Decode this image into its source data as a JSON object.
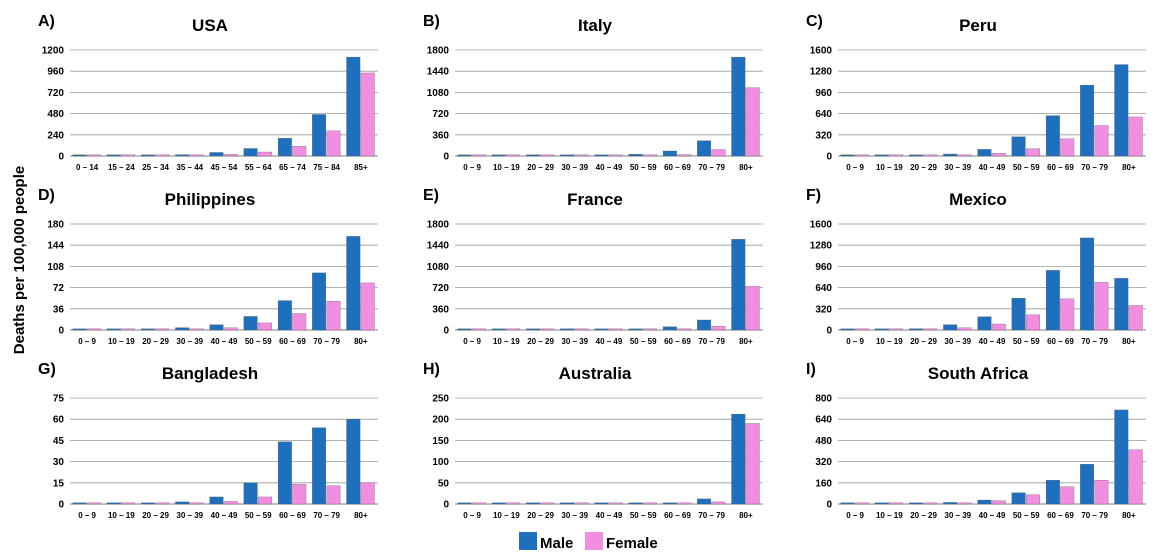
{
  "ylabel": "Deaths per 100,000 people",
  "legend": [
    {
      "label": "Male",
      "color": "#1f6fbf"
    },
    {
      "label": "Female",
      "color": "#f28ee0"
    }
  ],
  "colors": {
    "male": "#1f6fbf",
    "female": "#f28ee0",
    "grid": "#9a9a9a"
  },
  "chart_data": [
    {
      "type": "bar",
      "letter": "A)",
      "title": "USA",
      "categories": [
        "0 – 14",
        "15 – 24",
        "25 – 34",
        "35 – 44",
        "45 – 54",
        "55 – 64",
        "65 – 74",
        "75 – 84",
        "85+"
      ],
      "yticks": [
        "0",
        "240",
        "480",
        "720",
        "960",
        "1200"
      ],
      "ylim": [
        0,
        1200
      ],
      "series": [
        {
          "name": "Male",
          "values": [
            3,
            5,
            8,
            15,
            40,
            85,
            200,
            470,
            1120
          ]
        },
        {
          "name": "Female",
          "values": [
            2,
            3,
            4,
            8,
            18,
            45,
            110,
            285,
            940
          ]
        }
      ]
    },
    {
      "type": "bar",
      "letter": "B)",
      "title": "Italy",
      "categories": [
        "0 – 9",
        "10 – 19",
        "20 – 29",
        "30 – 39",
        "40 – 49",
        "50 – 59",
        "60 – 69",
        "70 – 79",
        "80+"
      ],
      "yticks": [
        "0",
        "360",
        "720",
        "1080",
        "1440",
        "1800"
      ],
      "ylim": [
        0,
        1800
      ],
      "series": [
        {
          "name": "Male",
          "values": [
            2,
            1,
            3,
            5,
            12,
            30,
            85,
            260,
            1680
          ]
        },
        {
          "name": "Female",
          "values": [
            1,
            1,
            2,
            3,
            5,
            10,
            25,
            110,
            1160
          ]
        }
      ]
    },
    {
      "type": "bar",
      "letter": "C)",
      "title": "Peru",
      "categories": [
        "0 – 9",
        "10 – 19",
        "20 – 29",
        "30 – 39",
        "40 – 49",
        "50 – 59",
        "60 – 69",
        "70 – 79",
        "80+"
      ],
      "yticks": [
        "0",
        "320",
        "640",
        "960",
        "1280",
        "1600"
      ],
      "ylim": [
        0,
        1600
      ],
      "series": [
        {
          "name": "Male",
          "values": [
            5,
            5,
            10,
            30,
            100,
            290,
            610,
            1070,
            1380
          ]
        },
        {
          "name": "Female",
          "values": [
            3,
            3,
            5,
            12,
            40,
            110,
            260,
            460,
            590
          ]
        }
      ]
    },
    {
      "type": "bar",
      "letter": "D)",
      "title": "Philippines",
      "categories": [
        "0 – 9",
        "10 – 19",
        "20 – 29",
        "30 – 39",
        "40 – 49",
        "50 – 59",
        "60 – 69",
        "70 – 79",
        "80+"
      ],
      "yticks": [
        "0",
        "36",
        "72",
        "108",
        "144",
        "180"
      ],
      "ylim": [
        0,
        180
      ],
      "series": [
        {
          "name": "Male",
          "values": [
            1,
            1,
            1,
            4,
            9,
            23,
            50,
            97,
            159
          ]
        },
        {
          "name": "Female",
          "values": [
            1,
            1,
            1,
            2,
            4,
            12,
            28,
            49,
            80
          ]
        }
      ]
    },
    {
      "type": "bar",
      "letter": "E)",
      "title": "France",
      "categories": [
        "0 – 9",
        "10 – 19",
        "20 – 29",
        "30 – 39",
        "40 – 49",
        "50 – 59",
        "60 – 69",
        "70 – 79",
        "80+"
      ],
      "yticks": [
        "0",
        "360",
        "720",
        "1080",
        "1440",
        "1800"
      ],
      "ylim": [
        0,
        1800
      ],
      "series": [
        {
          "name": "Male",
          "values": [
            1,
            1,
            2,
            4,
            8,
            20,
            55,
            170,
            1540
          ]
        },
        {
          "name": "Female",
          "values": [
            1,
            1,
            1,
            2,
            4,
            10,
            22,
            65,
            740
          ]
        }
      ]
    },
    {
      "type": "bar",
      "letter": "F)",
      "title": "Mexico",
      "categories": [
        "0 – 9",
        "10 – 19",
        "20 – 29",
        "30 – 39",
        "40 – 49",
        "50 – 59",
        "60 – 69",
        "70 – 79",
        "80+"
      ],
      "yticks": [
        "0",
        "320",
        "640",
        "960",
        "1280",
        "1600"
      ],
      "ylim": [
        0,
        1600
      ],
      "series": [
        {
          "name": "Male",
          "values": [
            5,
            8,
            20,
            80,
            200,
            480,
            900,
            1390,
            780
          ]
        },
        {
          "name": "Female",
          "values": [
            3,
            4,
            10,
            35,
            90,
            230,
            470,
            720,
            370
          ]
        }
      ]
    },
    {
      "type": "bar",
      "letter": "G)",
      "title": "Bangladesh",
      "categories": [
        "0 – 9",
        "10 – 19",
        "20 – 29",
        "30 – 39",
        "40 – 49",
        "50 – 59",
        "60 – 69",
        "70 – 79",
        "80+"
      ],
      "yticks": [
        "0",
        "15",
        "30",
        "45",
        "60",
        "75"
      ],
      "ylim": [
        0,
        75
      ],
      "series": [
        {
          "name": "Male",
          "values": [
            0.2,
            0.3,
            0.5,
            1.5,
            5,
            15,
            44,
            54,
            60
          ]
        },
        {
          "name": "Female",
          "values": [
            0.1,
            0.2,
            0.3,
            0.8,
            1.8,
            5,
            14,
            13,
            15
          ]
        }
      ]
    },
    {
      "type": "bar",
      "letter": "H)",
      "title": "Australia",
      "categories": [
        "0 – 9",
        "10 – 19",
        "20 – 29",
        "30 – 39",
        "40 – 49",
        "50 – 59",
        "60 – 69",
        "70 – 79",
        "80+"
      ],
      "yticks": [
        "0",
        "50",
        "100",
        "150",
        "200",
        "250"
      ],
      "ylim": [
        0,
        250
      ],
      "series": [
        {
          "name": "Male",
          "values": [
            0,
            0,
            0.5,
            0.5,
            0.8,
            1,
            2,
            12,
            212
          ]
        },
        {
          "name": "Female",
          "values": [
            0,
            0,
            0.3,
            0.3,
            0.4,
            0.6,
            1.5,
            5,
            190
          ]
        }
      ]
    },
    {
      "type": "bar",
      "letter": "I)",
      "title": "South Africa",
      "categories": [
        "0 – 9",
        "10 – 19",
        "20 – 29",
        "30 – 39",
        "40 – 49",
        "50 – 59",
        "60 – 69",
        "70 – 79",
        "80+"
      ],
      "yticks": [
        "0",
        "160",
        "320",
        "480",
        "640",
        "800"
      ],
      "ylim": [
        0,
        800
      ],
      "series": [
        {
          "name": "Male",
          "values": [
            2,
            3,
            5,
            12,
            30,
            85,
            180,
            300,
            710
          ]
        },
        {
          "name": "Female",
          "values": [
            1,
            2,
            3,
            8,
            25,
            70,
            130,
            180,
            410
          ]
        }
      ]
    }
  ]
}
